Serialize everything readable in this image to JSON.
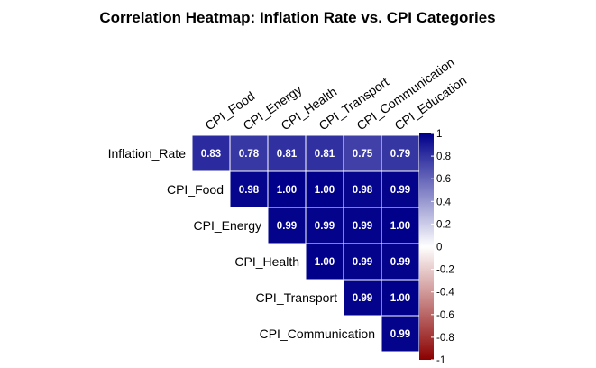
{
  "chart_data": {
    "type": "heatmap",
    "title": "Correlation Heatmap: Inflation Rate vs. CPI Categories",
    "columns": [
      "CPI_Food",
      "CPI_Energy",
      "CPI_Health",
      "CPI_Transport",
      "CPI_Communication",
      "CPI_Education"
    ],
    "rows": [
      {
        "name": "Inflation_Rate",
        "start": 0,
        "values": [
          0.83,
          0.78,
          0.81,
          0.81,
          0.75,
          0.79
        ]
      },
      {
        "name": "CPI_Food",
        "start": 1,
        "values": [
          0.98,
          1.0,
          1.0,
          0.98,
          0.99
        ]
      },
      {
        "name": "CPI_Energy",
        "start": 2,
        "values": [
          0.99,
          0.99,
          0.99,
          1.0
        ]
      },
      {
        "name": "CPI_Health",
        "start": 3,
        "values": [
          1.0,
          0.99,
          0.99
        ]
      },
      {
        "name": "CPI_Transport",
        "start": 4,
        "values": [
          0.99,
          1.0
        ]
      },
      {
        "name": "CPI_Communication",
        "start": 5,
        "values": [
          0.99
        ]
      }
    ],
    "colorbar": {
      "range": [
        -1,
        1
      ],
      "ticks": [
        1,
        0.8,
        0.6,
        0.4,
        0.2,
        0,
        -0.2,
        -0.4,
        -0.6,
        -0.8,
        -1
      ],
      "tick_labels": [
        "1",
        "0.8",
        "0.6",
        "0.4",
        "0.2",
        "0",
        "-0.2",
        "-0.4",
        "-0.6",
        "-0.8",
        "-1"
      ],
      "low_color": "#8B0000",
      "mid_color": "#ffffff",
      "high_color": "#00008B"
    },
    "legend_position": "right"
  }
}
